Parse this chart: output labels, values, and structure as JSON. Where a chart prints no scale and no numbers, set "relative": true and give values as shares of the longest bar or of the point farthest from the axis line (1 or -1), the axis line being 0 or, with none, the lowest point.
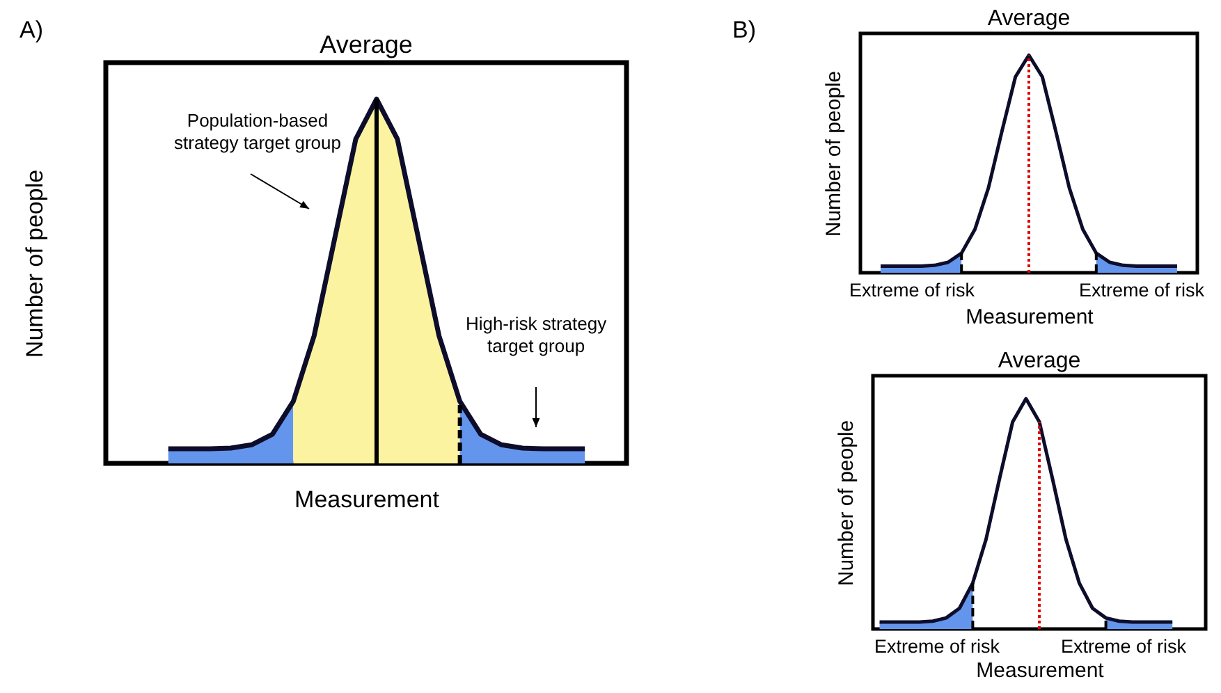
{
  "chart_data": [
    {
      "type": "line",
      "relative": true,
      "title": "Average",
      "xlabel": "Measurement",
      "ylabel": "Number of people",
      "categories": [
        null,
        null,
        null,
        null,
        null,
        null,
        null,
        null,
        null,
        null,
        null,
        null,
        null,
        null,
        null,
        null,
        null,
        null,
        null,
        null,
        null
      ],
      "series": [
        {
          "color": "#0d0d2b",
          "values": [
            0.04,
            0.04,
            0.04,
            0.042,
            0.051,
            0.08,
            0.17,
            0.35,
            0.62,
            0.89,
            1,
            0.89,
            0.62,
            0.35,
            0.17,
            0.08,
            0.051,
            0.042,
            0.04,
            0.04,
            0.04
          ]
        }
      ],
      "annotations": [
        "A)",
        "Population-based\nstrategy target group",
        "High-risk strategy\ntarget group"
      ]
    },
    {
      "type": "line",
      "relative": true,
      "title": "Average",
      "xlabel": "Measurement",
      "ylabel": "Number of people",
      "categories": [
        null,
        null,
        null,
        null,
        null,
        null,
        null,
        null,
        null,
        null,
        null,
        null,
        null,
        null,
        null,
        null,
        null,
        null,
        null,
        null,
        null,
        null,
        null
      ],
      "series": [
        {
          "color": "#0d0d2b",
          "values": [
            0.03,
            0.03,
            0.03,
            0.03,
            0.034,
            0.048,
            0.09,
            0.2,
            0.39,
            0.65,
            0.9,
            1,
            0.9,
            0.65,
            0.39,
            0.2,
            0.09,
            0.048,
            0.034,
            0.03,
            0.03,
            0.03,
            0.03
          ]
        }
      ],
      "annotations": [
        "B)",
        "Extreme of risk",
        "Extreme of risk"
      ]
    },
    {
      "type": "line",
      "relative": true,
      "title": "Average",
      "xlabel": "Measurement",
      "ylabel": "Number of people",
      "categories": [
        null,
        null,
        null,
        null,
        null,
        null,
        null,
        null,
        null,
        null,
        null,
        null,
        null,
        null,
        null,
        null,
        null,
        null,
        null,
        null,
        null,
        null,
        null
      ],
      "series": [
        {
          "color": "#0d0d2b",
          "values": [
            0.03,
            0.03,
            0.03,
            0.03,
            0.034,
            0.048,
            0.09,
            0.2,
            0.39,
            0.65,
            0.9,
            1,
            0.9,
            0.65,
            0.39,
            0.2,
            0.09,
            0.048,
            0.034,
            0.03,
            0.03,
            0.03,
            0.03
          ]
        }
      ],
      "annotations": [
        "Extreme of risk",
        "Extreme of risk"
      ]
    }
  ]
}
